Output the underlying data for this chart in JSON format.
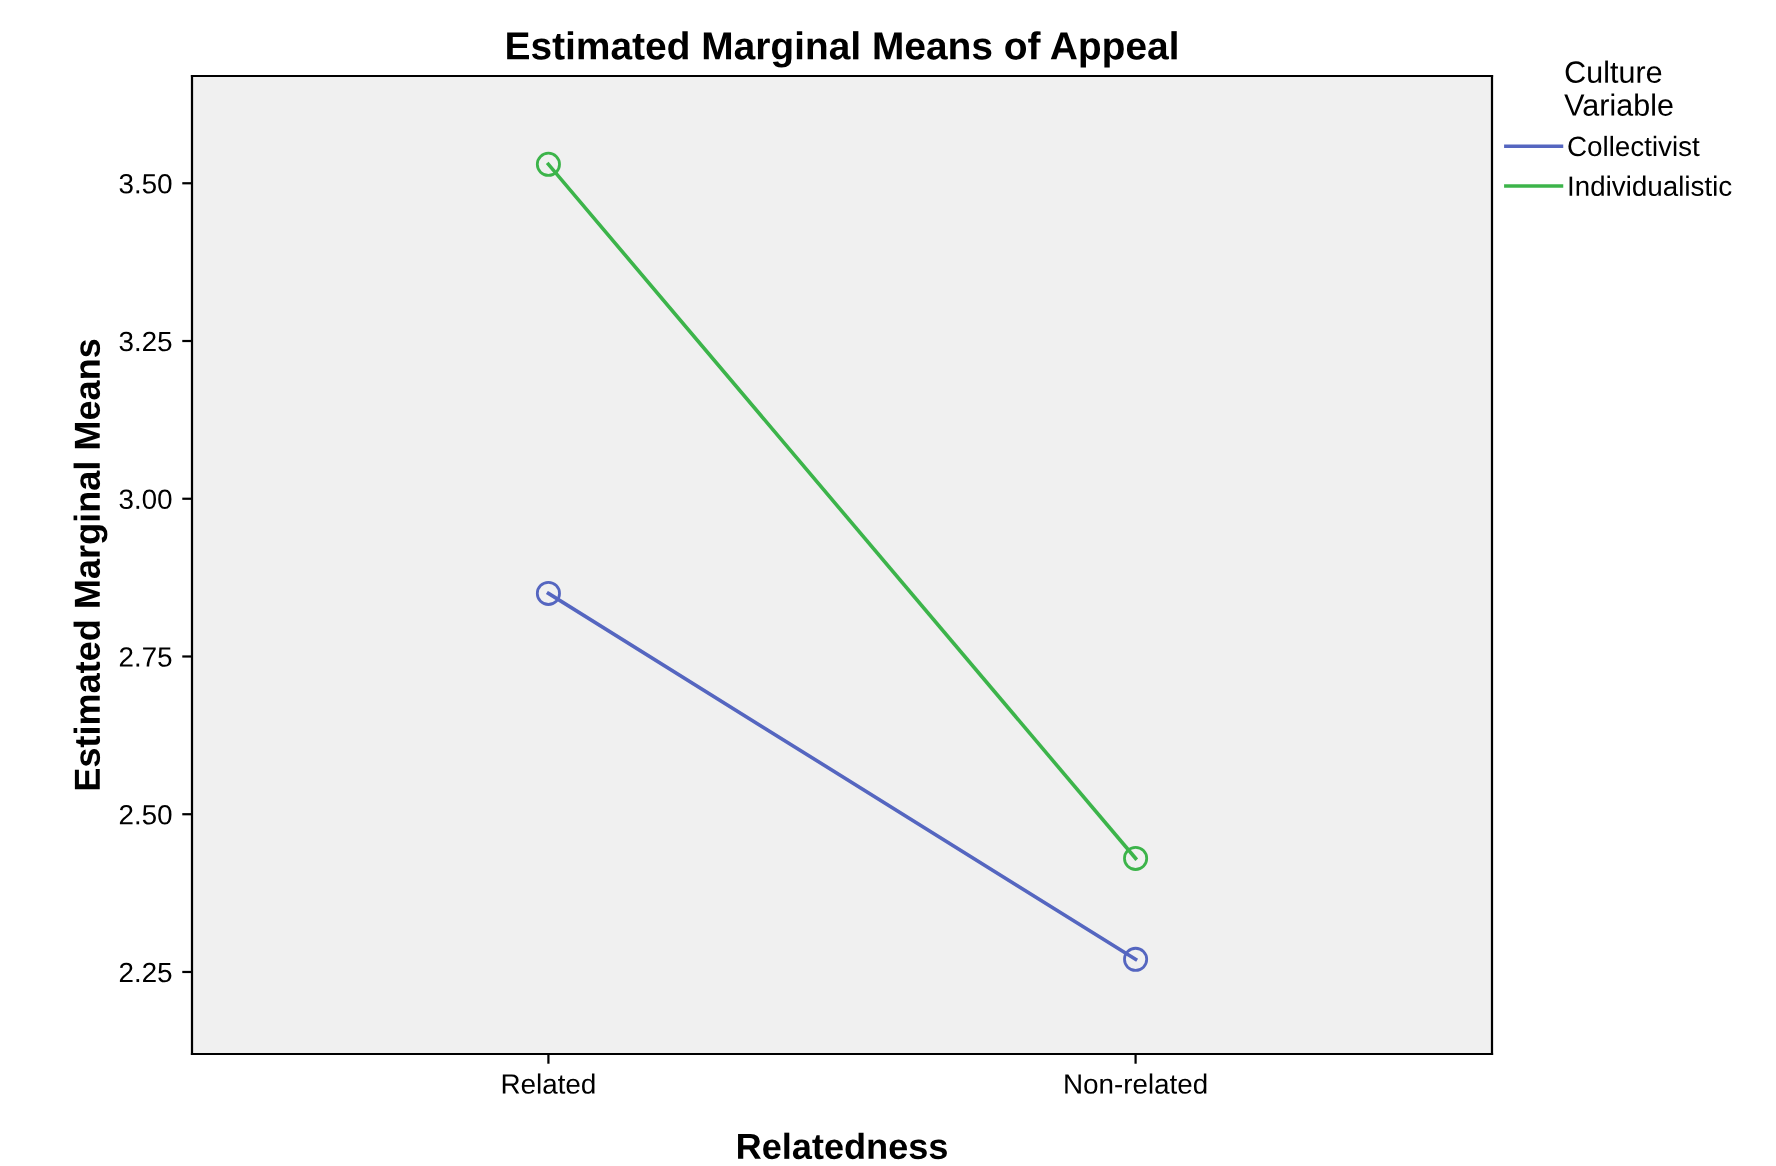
{
  "chart_data": {
    "type": "line",
    "title": "Estimated Marginal Means of Appeal",
    "xlabel": "Relatedness",
    "ylabel": "Estimated Marginal Means",
    "legend_title": "Culture\nVariable",
    "categories": [
      "Related",
      "Non-related"
    ],
    "series": [
      {
        "name": "Collectivist",
        "color": "#5566c0",
        "values": [
          2.85,
          2.27
        ]
      },
      {
        "name": "Individualistic",
        "color": "#3cb44a",
        "values": [
          3.53,
          2.43
        ]
      }
    ],
    "ylim": [
      2.12,
      3.67
    ],
    "yticks": [
      {
        "value": 2.25,
        "label": "2.25"
      },
      {
        "value": 2.5,
        "label": "2.50"
      },
      {
        "value": 2.75,
        "label": "2.75"
      },
      {
        "value": 3,
        "label": "3.00"
      },
      {
        "value": 3.25,
        "label": "3.25"
      },
      {
        "value": 3.5,
        "label": "3.50"
      }
    ],
    "marker": "circle",
    "line_style": "solid",
    "grid": false,
    "legend": "right"
  }
}
